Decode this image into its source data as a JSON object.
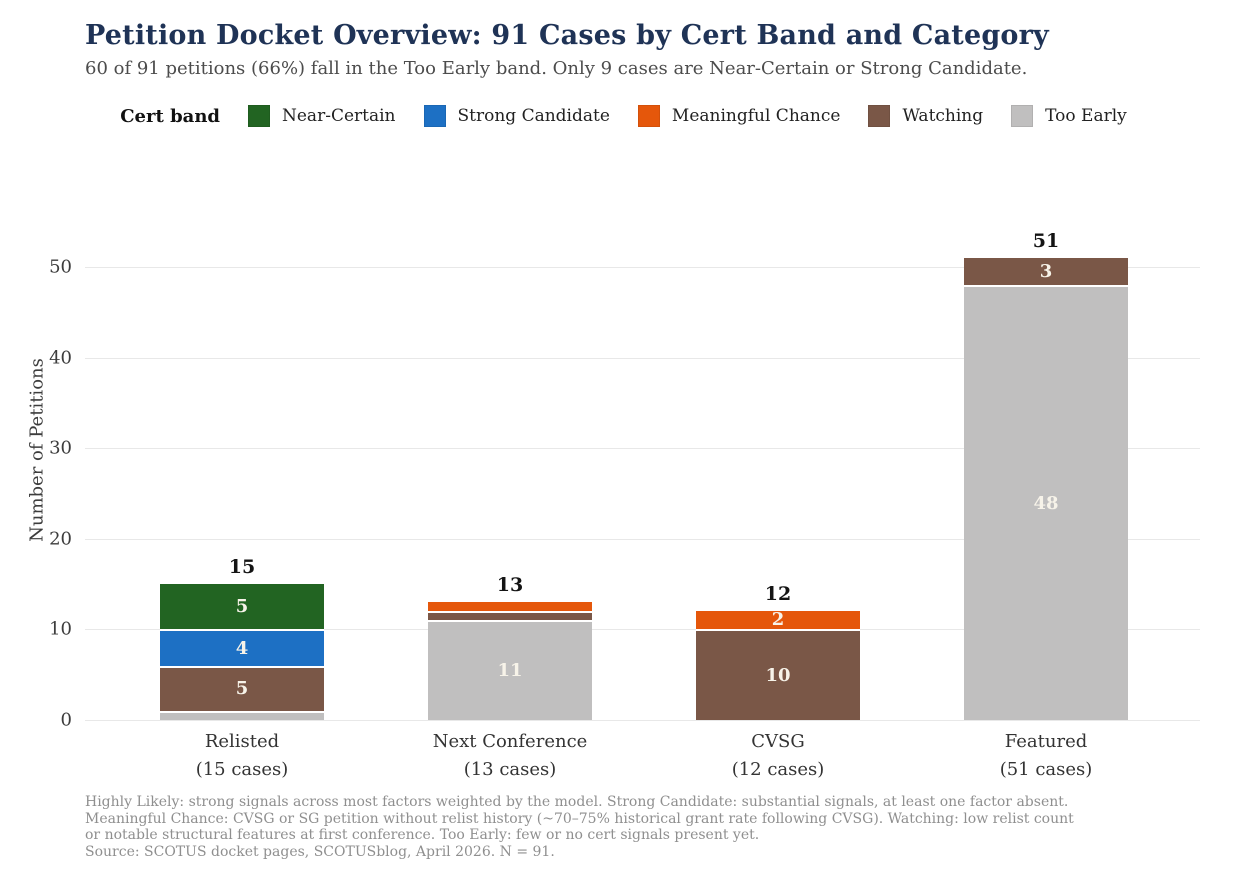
{
  "header": {
    "title": "Petition Docket Overview: 91 Cases by Cert Band and Category",
    "subtitle": "60 of 91 petitions (66%) fall in the Too Early band. Only 9 cases are Near-Certain or Strong Candidate."
  },
  "legend": {
    "title": "Cert band",
    "items": [
      {
        "label": "Near-Certain",
        "color": "#226422"
      },
      {
        "label": "Strong Candidate",
        "color": "#1d70c4"
      },
      {
        "label": "Meaningful Chance",
        "color": "#e5570b"
      },
      {
        "label": "Watching",
        "color": "#7a5747"
      },
      {
        "label": "Too Early",
        "color": "#c0bfbf"
      }
    ]
  },
  "chart_data": {
    "type": "bar",
    "stacked": true,
    "title": "Petition Docket Overview: 91 Cases by Cert Band and Category",
    "xlabel": "",
    "ylabel": "Number of Petitions",
    "ylim": [
      0,
      55
    ],
    "yticks": [
      0,
      10,
      20,
      30,
      40,
      50
    ],
    "grid": true,
    "legend_position": "top",
    "categories": [
      "Relisted",
      "Next Conference",
      "CVSG",
      "Featured"
    ],
    "category_sublabels": [
      "(15 cases)",
      "(13 cases)",
      "(12 cases)",
      "(51 cases)"
    ],
    "totals": [
      15,
      13,
      12,
      51
    ],
    "series": [
      {
        "name": "Near-Certain",
        "color": "#226422",
        "values": [
          5,
          0,
          0,
          0
        ]
      },
      {
        "name": "Strong Candidate",
        "color": "#1d70c4",
        "values": [
          4,
          0,
          0,
          0
        ]
      },
      {
        "name": "Meaningful Chance",
        "color": "#e5570b",
        "values": [
          0,
          1,
          2,
          0
        ]
      },
      {
        "name": "Watching",
        "color": "#7a5747",
        "values": [
          5,
          1,
          10,
          3
        ]
      },
      {
        "name": "Too Early",
        "color": "#c0bfbf",
        "values": [
          1,
          11,
          0,
          48
        ]
      }
    ],
    "stack_order_bottom_to_top": [
      "Too Early",
      "Watching",
      "Meaningful Chance",
      "Strong Candidate",
      "Near-Certain"
    ]
  },
  "footnotes": {
    "lines": [
      "Highly Likely: strong signals across most factors weighted by the model. Strong Candidate: substantial signals, at least one factor absent.",
      "Meaningful Chance: CVSG or SG petition without relist history (~70–75% historical grant rate following CVSG). Watching: low relist count",
      "or notable structural features at first conference. Too Early: few or no cert signals present yet.",
      "Source: SCOTUS docket pages, SCOTUSblog, April 2026. N = 91."
    ]
  },
  "colors": {
    "title": "#1f3356",
    "subtitle": "#4c4c4c",
    "gridline": "#e8e8e8",
    "tick_label": "#3d3d3d",
    "segment_label": "#f7f3e9",
    "total_label": "#141414",
    "footnote": "#8f8f8f"
  }
}
